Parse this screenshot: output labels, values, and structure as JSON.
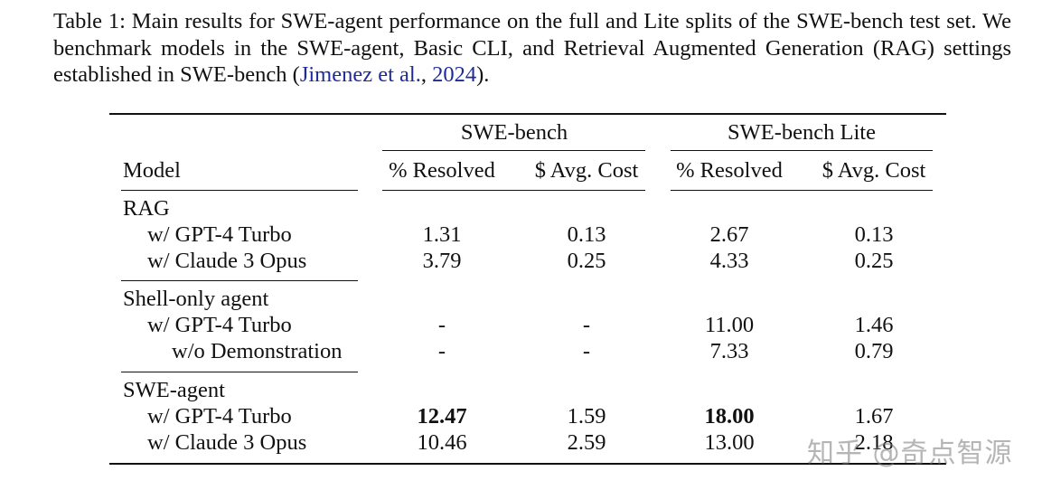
{
  "caption": {
    "text_before_link": "Table 1: Main results for SWE-agent performance on the full and Lite splits of the SWE-bench test set. We benchmark models in the SWE-agent, Basic CLI, and Retrieval Augmented Generation (RAG) settings established in SWE-bench (",
    "link_authors": "Jimenez et al.",
    "link_sep": ", ",
    "link_year": "2024",
    "text_after_link": ")."
  },
  "table": {
    "group_headers": [
      "SWE-bench",
      "SWE-bench Lite"
    ],
    "col_model": "Model",
    "col_headers": [
      "% Resolved",
      "$ Avg. Cost",
      "% Resolved",
      "$ Avg. Cost"
    ],
    "sections": [
      {
        "title": "RAG",
        "rows": [
          {
            "label": "w/ GPT-4 Turbo",
            "values": [
              "1.31",
              "0.13",
              "2.67",
              "0.13"
            ]
          },
          {
            "label": "w/ Claude 3 Opus",
            "values": [
              "3.79",
              "0.25",
              "4.33",
              "0.25"
            ]
          }
        ]
      },
      {
        "title": "Shell-only agent",
        "rows": [
          {
            "label": "w/ GPT-4 Turbo",
            "values": [
              "-",
              "-",
              "11.00",
              "1.46"
            ]
          },
          {
            "label": "w/o Demonstration",
            "values": [
              "-",
              "-",
              "7.33",
              "0.79"
            ]
          }
        ]
      },
      {
        "title": "SWE-agent",
        "rows": [
          {
            "label": "w/ GPT-4 Turbo",
            "values": [
              "12.47",
              "1.59",
              "18.00",
              "1.67"
            ]
          },
          {
            "label": "w/ Claude 3 Opus",
            "values": [
              "10.46",
              "2.59",
              "13.00",
              "2.18"
            ]
          }
        ]
      }
    ]
  },
  "watermark": "知乎 @奇点智源"
}
